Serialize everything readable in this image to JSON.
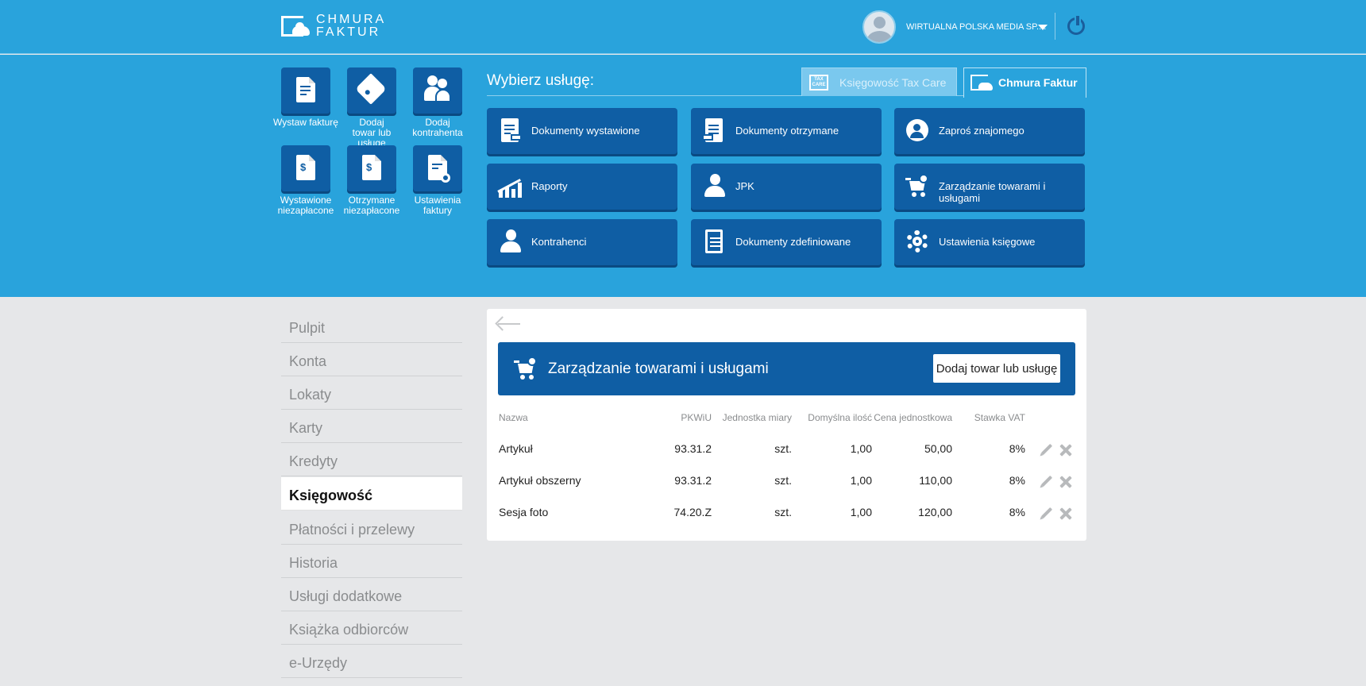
{
  "header": {
    "logo_line1": "CHMURA",
    "logo_line2": "FAKTUR",
    "user_name": "WIRTUALNA POLSKA MEDIA SP...."
  },
  "quick_actions": [
    {
      "label": "Wystaw fakturę",
      "icon": "document-edit-icon"
    },
    {
      "label": "Dodaj towar lub usługę",
      "icon": "tag-add-icon"
    },
    {
      "label": "Dodaj kontrahenta",
      "icon": "people-add-icon"
    },
    {
      "label": "Wystawione niezapłacone",
      "icon": "invoice-out-icon"
    },
    {
      "label": "Otrzymane niezapłacone",
      "icon": "invoice-in-icon"
    },
    {
      "label": "Ustawienia faktury",
      "icon": "document-settings-icon"
    }
  ],
  "services": {
    "prompt": "Wybierz usługę:",
    "tab_tax": "Księgowość Tax Care",
    "tab_tax_logo": "TAX CARE",
    "tab_cf": "Chmura Faktur",
    "tiles": [
      {
        "label": "Dokumenty wystawione",
        "icon": "document-out-icon"
      },
      {
        "label": "Dokumenty otrzymane",
        "icon": "document-in-icon"
      },
      {
        "label": "Zaproś znajomego",
        "icon": "invite-icon"
      },
      {
        "label": "Raporty",
        "icon": "chart-icon"
      },
      {
        "label": "JPK",
        "icon": "person-icon"
      },
      {
        "label": "Zarządzanie towarami i usługami",
        "icon": "cart-icon"
      },
      {
        "label": "Kontrahenci",
        "icon": "contractor-icon"
      },
      {
        "label": "Dokumenty zdefiniowane",
        "icon": "document-list-icon"
      },
      {
        "label": "Ustawienia księgowe",
        "icon": "gear-icon"
      }
    ]
  },
  "sidebar": {
    "items": [
      {
        "label": "Pulpit"
      },
      {
        "label": "Konta"
      },
      {
        "label": "Lokaty"
      },
      {
        "label": "Karty"
      },
      {
        "label": "Kredyty"
      },
      {
        "label": "Księgowość",
        "active": true
      },
      {
        "label": "Płatności i przelewy"
      },
      {
        "label": "Historia"
      },
      {
        "label": "Usługi dodatkowe"
      },
      {
        "label": "Książka odbiorców"
      },
      {
        "label": "e-Urzędy"
      }
    ]
  },
  "main": {
    "title": "Zarządzanie towarami i usługami",
    "add_button": "Dodaj towar lub usługę",
    "columns": [
      "Nazwa",
      "PKWiU",
      "Jednostka miary",
      "Domyślna ilość",
      "Cena jednostkowa",
      "Stawka VAT"
    ],
    "rows": [
      [
        "Artykuł",
        "93.31.2",
        "szt.",
        "1,00",
        "50,00",
        "8%"
      ],
      [
        "Artykuł obszerny",
        "93.31.2",
        "szt.",
        "1,00",
        "110,00",
        "8%"
      ],
      [
        "Sesja foto",
        "74.20.Z",
        "szt.",
        "1,00",
        "120,00",
        "8%"
      ]
    ]
  }
}
